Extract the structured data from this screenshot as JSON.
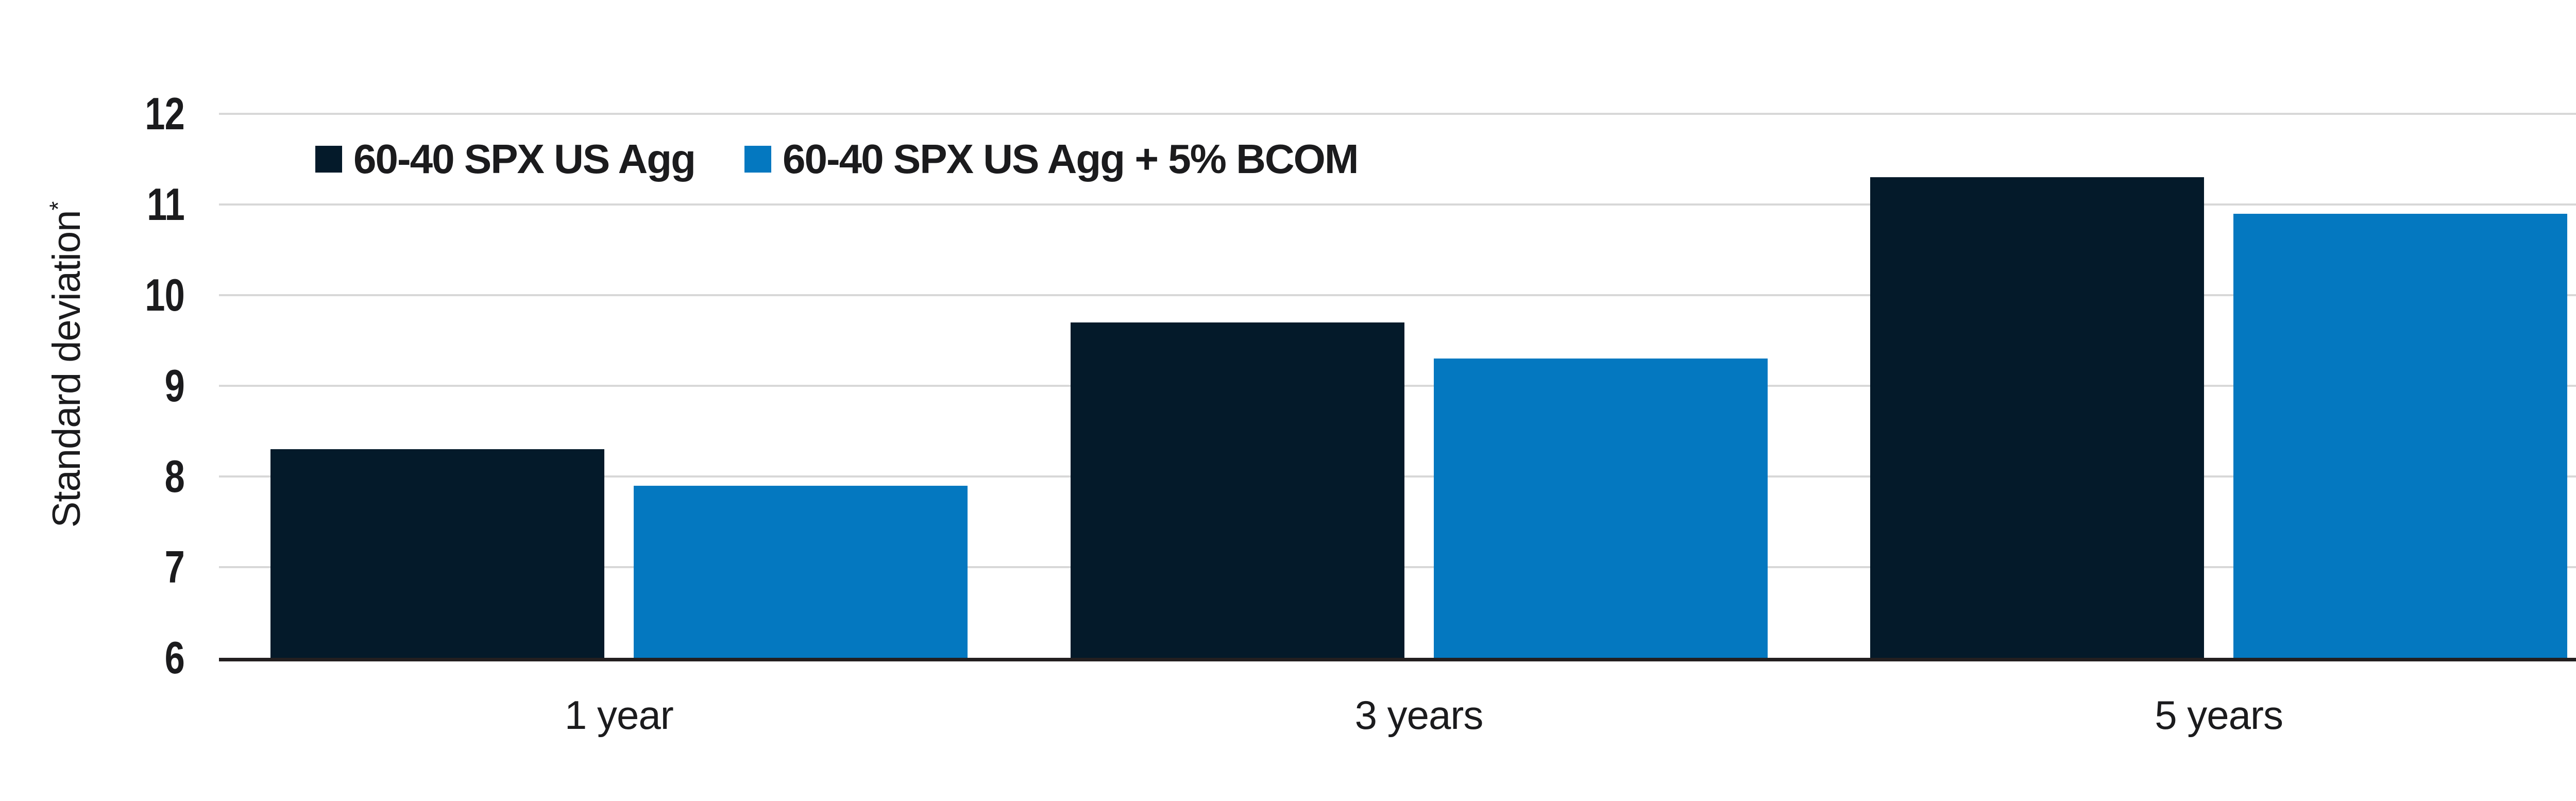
{
  "chart_data": {
    "type": "bar",
    "title": "",
    "categories": [
      "1 year",
      "3 years",
      "5 years"
    ],
    "series": [
      {
        "name": "60-40 SPX US Agg",
        "values": [
          8.3,
          9.7,
          11.3
        ],
        "color": "#041a2a"
      },
      {
        "name": "60-40 SPX US Agg + 5% BCOM",
        "values": [
          7.9,
          9.3,
          10.9
        ],
        "color": "#0478c0"
      }
    ],
    "ylabel": "Standard deviation",
    "ylabel_note_symbol": "*",
    "xlabel": "",
    "ylim": [
      6,
      12
    ],
    "yticks": [
      6,
      7,
      8,
      9,
      10,
      11,
      12
    ],
    "grid": true,
    "legend_position": "top-left",
    "colors": {
      "gridline": "#d8d8d8",
      "axis_line": "#231f20",
      "text": "#1b1b1d",
      "background": "#ffffff"
    }
  }
}
